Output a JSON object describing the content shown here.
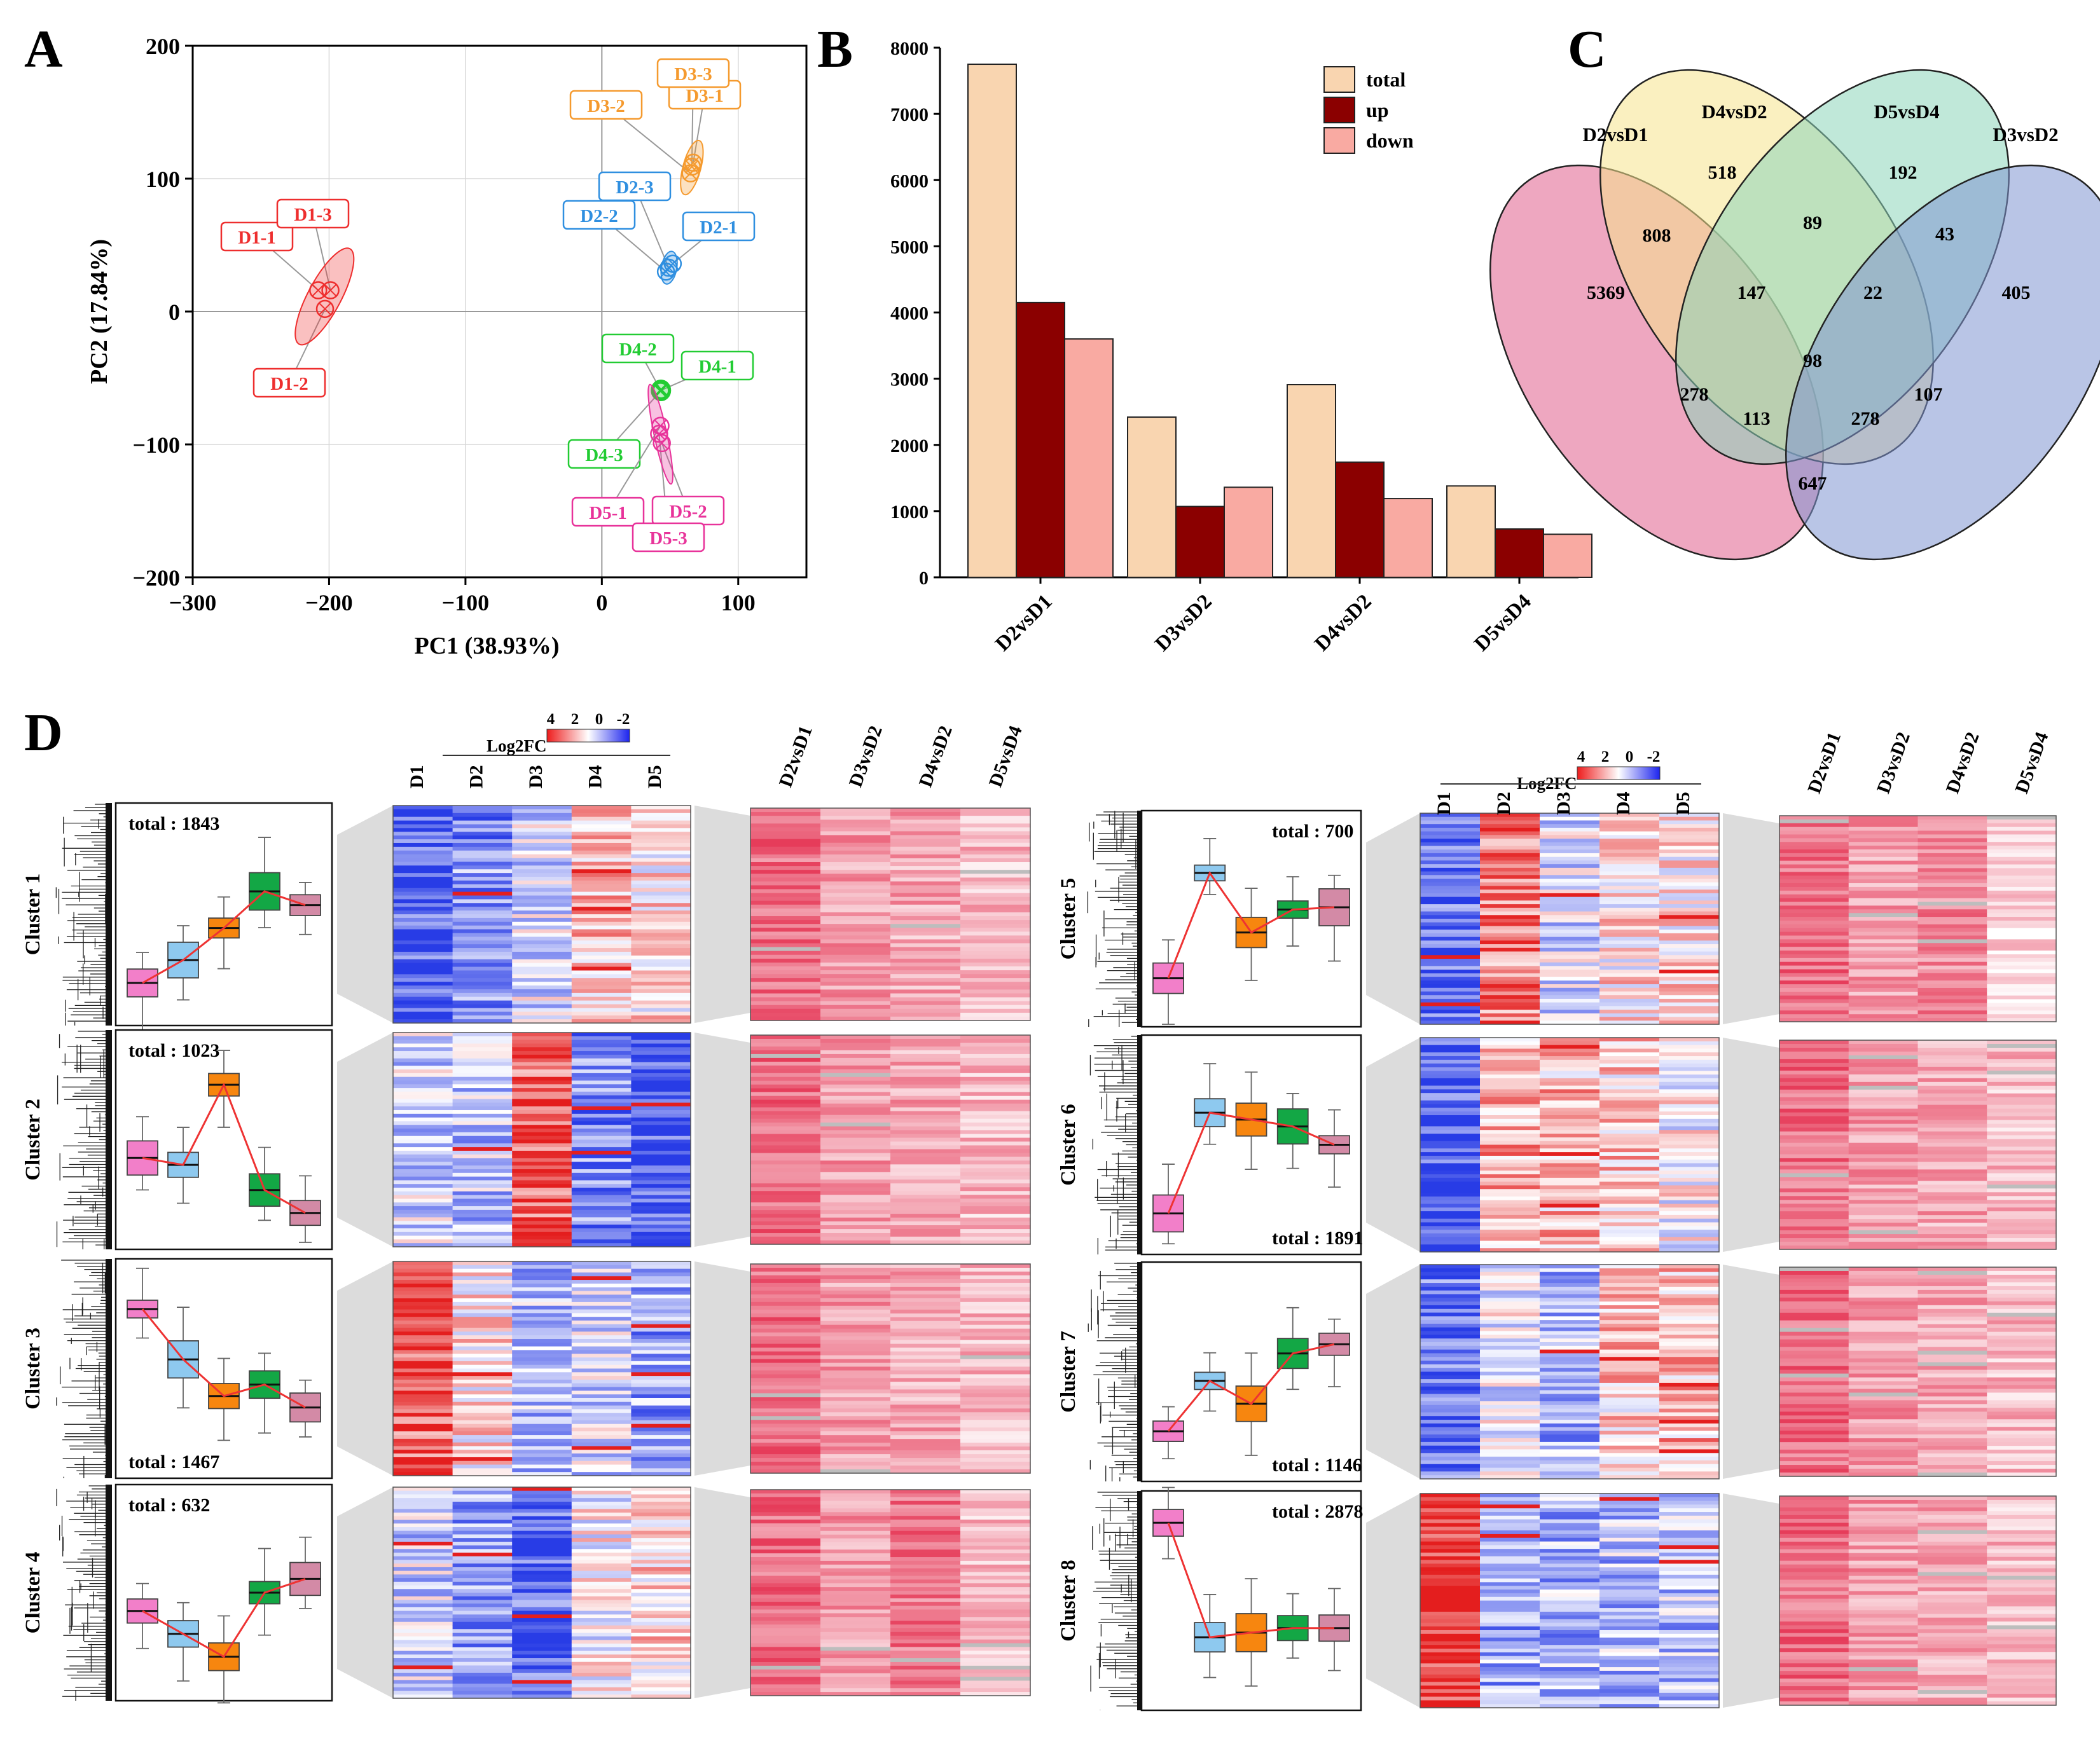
{
  "panels": {
    "A": {
      "letter": "A",
      "xlabel": "PC1 (38.93%)",
      "ylabel": "PC2 (17.84%)",
      "xticks": [
        "−300",
        "−200",
        "−100",
        "0",
        "100"
      ],
      "yticks": [
        "200",
        "100",
        "0",
        "−100",
        "−200"
      ]
    },
    "B": {
      "letter": "B",
      "yticks": [
        "0",
        "1000",
        "2000",
        "3000",
        "4000",
        "5000",
        "6000",
        "7000",
        "8000"
      ]
    },
    "C": {
      "letter": "C"
    },
    "D": {
      "letter": "D"
    }
  },
  "colors": {
    "D1": "#ee2e2e",
    "D2": "#2f8fe0",
    "D3": "#f59a2e",
    "D4": "#22cc33",
    "D5": "#e8339a",
    "total": "#f9d5b0",
    "up": "#8b0000",
    "down": "#f9aaa2",
    "boxes": [
      "#f27fc9",
      "#8ec9ef",
      "#f7860f",
      "#13a745",
      "#d38aa6"
    ],
    "venn": [
      "#e05f8c",
      "#f5e38d",
      "#8cd6ba",
      "#7f96d2"
    ]
  },
  "chart_data": [
    {
      "type": "scatter",
      "panel": "A",
      "xlabel": "PC1 (38.93%)",
      "ylabel": "PC2 (17.84%)",
      "xlim": [
        -300,
        150
      ],
      "ylim": [
        -200,
        200
      ],
      "grid": true,
      "series": [
        {
          "name": "D1",
          "points": [
            {
              "label": "D1-1",
              "x": -208,
              "y": 16
            },
            {
              "label": "D1-2",
              "x": -203,
              "y": 2
            },
            {
              "label": "D1-3",
              "x": -199,
              "y": 16
            }
          ]
        },
        {
          "name": "D2",
          "points": [
            {
              "label": "D2-1",
              "x": 52,
              "y": 36
            },
            {
              "label": "D2-2",
              "x": 47,
              "y": 30
            },
            {
              "label": "D2-3",
              "x": 49,
              "y": 33
            }
          ]
        },
        {
          "name": "D3",
          "points": [
            {
              "label": "D3-1",
              "x": 67,
              "y": 112
            },
            {
              "label": "D3-2",
              "x": 65,
              "y": 104
            },
            {
              "label": "D3-3",
              "x": 66,
              "y": 109
            }
          ]
        },
        {
          "name": "D4",
          "points": [
            {
              "label": "D4-1",
              "x": 44,
              "y": -59
            },
            {
              "label": "D4-2",
              "x": 43,
              "y": -59
            },
            {
              "label": "D4-3",
              "x": 43,
              "y": -60
            }
          ]
        },
        {
          "name": "D5",
          "points": [
            {
              "label": "D5-1",
              "x": 43,
              "y": -86
            },
            {
              "label": "D5-2",
              "x": 44,
              "y": -99
            },
            {
              "label": "D5-3",
              "x": 42,
              "y": -92
            }
          ]
        }
      ]
    },
    {
      "type": "bar",
      "panel": "B",
      "categories": [
        "D2vsD1",
        "D3vsD2",
        "D4vsD2",
        "D5vsD4"
      ],
      "ylim": [
        0,
        8000
      ],
      "series": [
        {
          "name": "total",
          "values": [
            7750,
            2420,
            2910,
            1380
          ]
        },
        {
          "name": "up",
          "values": [
            4150,
            1070,
            1740,
            730
          ]
        },
        {
          "name": "down",
          "values": [
            3600,
            1360,
            1190,
            650
          ]
        }
      ]
    },
    {
      "type": "venn",
      "panel": "C",
      "sets": [
        "D2vsD1",
        "D4vsD2",
        "D5vsD4",
        "D3vsD2"
      ],
      "regions": [
        {
          "sets": [
            "D2vsD1"
          ],
          "value": 5369
        },
        {
          "sets": [
            "D4vsD2"
          ],
          "value": 518
        },
        {
          "sets": [
            "D5vsD4"
          ],
          "value": 192
        },
        {
          "sets": [
            "D3vsD2"
          ],
          "value": 405
        },
        {
          "sets": [
            "D2vsD1",
            "D4vsD2"
          ],
          "value": 808
        },
        {
          "sets": [
            "D4vsD2",
            "D5vsD4"
          ],
          "value": 89
        },
        {
          "sets": [
            "D5vsD4",
            "D3vsD2"
          ],
          "value": 43
        },
        {
          "sets": [
            "D2vsD1",
            "D4vsD2",
            "D5vsD4"
          ],
          "value": 147
        },
        {
          "sets": [
            "D4vsD2",
            "D5vsD4",
            "D3vsD2"
          ],
          "value": 22
        },
        {
          "sets": [
            "D2vsD1",
            "D4vsD2",
            "D5vsD4",
            "D3vsD2"
          ],
          "value": 98
        },
        {
          "sets": [
            "D2vsD1",
            "D5vsD4"
          ],
          "value": 278
        },
        {
          "sets": [
            "D4vsD2",
            "D3vsD2"
          ],
          "value": 107
        },
        {
          "sets": [
            "D2vsD1",
            "D5vsD4",
            "D3vsD2"
          ],
          "value": 113
        },
        {
          "sets": [
            "D2vsD1",
            "D4vsD2",
            "D3vsD2"
          ],
          "value": 278
        },
        {
          "sets": [
            "D2vsD1",
            "D3vsD2"
          ],
          "value": 647
        }
      ]
    },
    {
      "type": "heatmap",
      "panel": "D",
      "legend_title": "Log2FC",
      "legend_ticks": [
        "4",
        "2",
        "0",
        "-2"
      ],
      "stages": [
        "D1",
        "D2",
        "D3",
        "D4",
        "D5"
      ],
      "comparisons": [
        "D2vsD1",
        "D3vsD2",
        "D4vsD2",
        "D5vsD4"
      ],
      "total_prefix": "total",
      "clusters": [
        {
          "name": "Cluster 1",
          "total": 1843,
          "medians": [
            -1.5,
            -1.0,
            -0.3,
            0.5,
            0.2
          ]
        },
        {
          "name": "Cluster 2",
          "total": 1023,
          "medians": [
            -0.4,
            -0.55,
            1.2,
            -1.1,
            -1.6
          ]
        },
        {
          "name": "Cluster 3",
          "total": 1467,
          "medians": [
            1.3,
            0.2,
            -0.6,
            -0.35,
            -0.85
          ]
        },
        {
          "name": "Cluster 4",
          "total": 632,
          "medians": [
            -0.4,
            -0.9,
            -1.4,
            0.0,
            0.3
          ]
        },
        {
          "name": "Cluster 5",
          "total": 700,
          "medians": [
            -1.3,
            1.0,
            -0.3,
            0.2,
            0.25
          ]
        },
        {
          "name": "Cluster 6",
          "total": 1891,
          "medians": [
            -1.5,
            0.7,
            0.55,
            0.4,
            0.0
          ]
        },
        {
          "name": "Cluster 7",
          "total": 1146,
          "medians": [
            -1.3,
            -0.2,
            -0.7,
            0.4,
            0.6
          ]
        },
        {
          "name": "Cluster 8",
          "total": 2878,
          "medians": [
            1.7,
            -0.8,
            -0.7,
            -0.6,
            -0.6
          ]
        }
      ]
    }
  ]
}
